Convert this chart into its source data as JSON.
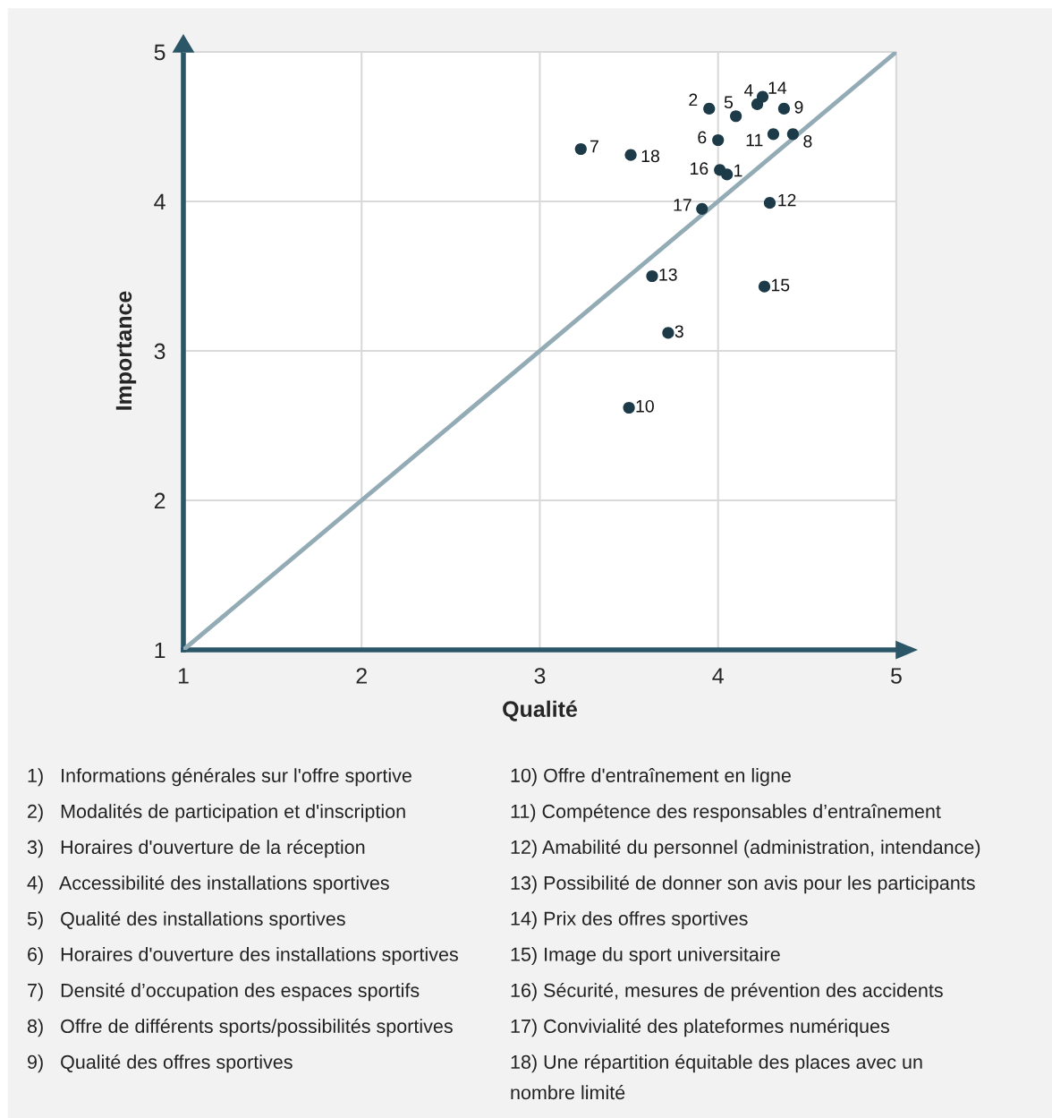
{
  "chart_data": {
    "type": "scatter",
    "xlabel": "Qualité",
    "ylabel": "Importance",
    "xlim": [
      1,
      5
    ],
    "ylim": [
      1,
      5
    ],
    "xticks": [
      1,
      2,
      3,
      4,
      5
    ],
    "yticks": [
      1,
      2,
      3,
      4,
      5
    ],
    "grid": true,
    "marker": "circle",
    "series": [
      {
        "color": "#1c3a47",
        "x": [
          4.05,
          3.95,
          3.72,
          4.22,
          4.1,
          4.0,
          3.23,
          4.42,
          4.37,
          3.5,
          4.31,
          4.29,
          3.63,
          4.25,
          4.26,
          4.01,
          3.91,
          3.51
        ],
        "values": [
          4.18,
          4.62,
          3.12,
          4.65,
          4.57,
          4.41,
          4.35,
          4.45,
          4.62,
          2.62,
          4.45,
          3.99,
          3.5,
          4.7,
          3.43,
          4.21,
          3.95,
          4.31
        ]
      },
      {
        "type": "line",
        "color": "#93abb5",
        "x": [
          1,
          5
        ],
        "values": [
          1,
          5
        ],
        "line_style": "solid",
        "marker": "none"
      }
    ],
    "annotations": [
      {
        "text": "1",
        "x": 4.05,
        "y": 4.18
      },
      {
        "text": "2",
        "x": 3.95,
        "y": 4.62
      },
      {
        "text": "3",
        "x": 3.72,
        "y": 3.12
      },
      {
        "text": "4",
        "x": 4.22,
        "y": 4.65
      },
      {
        "text": "5",
        "x": 4.1,
        "y": 4.57
      },
      {
        "text": "6",
        "x": 4.0,
        "y": 4.41
      },
      {
        "text": "7",
        "x": 3.23,
        "y": 4.35
      },
      {
        "text": "8",
        "x": 4.42,
        "y": 4.45
      },
      {
        "text": "9",
        "x": 4.37,
        "y": 4.62
      },
      {
        "text": "10",
        "x": 3.5,
        "y": 2.62
      },
      {
        "text": "11",
        "x": 4.31,
        "y": 4.45
      },
      {
        "text": "12",
        "x": 4.29,
        "y": 3.99
      },
      {
        "text": "13",
        "x": 3.63,
        "y": 3.5
      },
      {
        "text": "14",
        "x": 4.25,
        "y": 4.7
      },
      {
        "text": "15",
        "x": 4.26,
        "y": 3.43
      },
      {
        "text": "16",
        "x": 4.01,
        "y": 4.21
      },
      {
        "text": "17",
        "x": 3.91,
        "y": 3.95
      },
      {
        "text": "18",
        "x": 3.51,
        "y": 4.31
      },
      "1)   Informations générales sur l'offre sportive",
      "2)   Modalités de participation et d'inscription",
      "3)   Horaires d'ouverture de la réception",
      "4)   Accessibilité des installations sportives",
      "5)   Qualité des installations sportives",
      "6)   Horaires d'ouverture des installations sportives",
      "7)   Densité d’occupation des espaces sportifs",
      "8)   Offre de différents sports/possibilités sportives",
      "9)   Qualité des offres sportives",
      "10) Offre d'entraînement en ligne",
      "11) Compétence des responsables d’entraînement",
      "12) Amabilité du personnel (administration, intendance)",
      "13) Possibilité de donner son avis pour les participants",
      "14) Prix des offres sportives",
      "15) Image du sport universitaire",
      "16) Sécurité, mesures de prévention des accidents",
      "17) Convivialité des plateformes numériques",
      "18) Une répartition équitable des places avec un\nnombre limité"
    ]
  }
}
